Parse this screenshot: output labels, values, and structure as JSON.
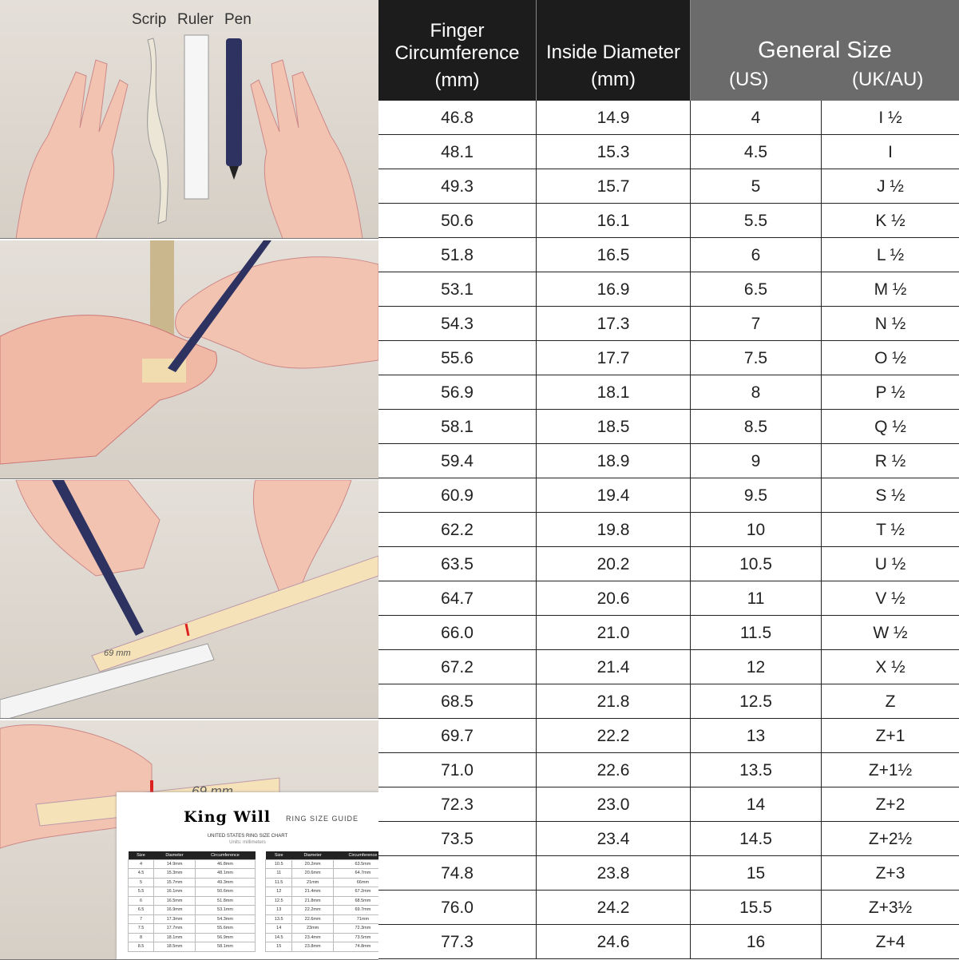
{
  "illustrations": {
    "tools": [
      "Scrip",
      "Ruler",
      "Pen"
    ],
    "pen_brand": "King Will",
    "strip_mark": "69 mm",
    "guide_card": {
      "brand": "King Will",
      "subtitle": "RING SIZE GUIDE",
      "chart_title": "UNITED STATES RING SIZE CHART",
      "units": "Units: millimeters",
      "columns": [
        "Size",
        "Diameter",
        "Circumference"
      ],
      "left_rows": [
        [
          "4",
          "14.9mm",
          "46.8mm"
        ],
        [
          "4.5",
          "15.3mm",
          "48.1mm"
        ],
        [
          "5",
          "15.7mm",
          "49.3mm"
        ],
        [
          "5.5",
          "16.1mm",
          "50.6mm"
        ],
        [
          "6",
          "16.5mm",
          "51.8mm"
        ],
        [
          "6.5",
          "16.9mm",
          "53.1mm"
        ],
        [
          "7",
          "17.3mm",
          "54.3mm"
        ],
        [
          "7.5",
          "17.7mm",
          "55.6mm"
        ],
        [
          "8",
          "18.1mm",
          "56.9mm"
        ],
        [
          "8.5",
          "18.5mm",
          "58.1mm"
        ]
      ],
      "right_rows": [
        [
          "10.5",
          "20.2mm",
          "63.5mm"
        ],
        [
          "11",
          "20.6mm",
          "64.7mm"
        ],
        [
          "11.5",
          "21mm",
          "66mm"
        ],
        [
          "12",
          "21.4mm",
          "67.2mm"
        ],
        [
          "12.5",
          "21.8mm",
          "68.5mm"
        ],
        [
          "13",
          "22.2mm",
          "69.7mm"
        ],
        [
          "13.5",
          "22.6mm",
          "71mm"
        ],
        [
          "14",
          "23mm",
          "72.3mm"
        ],
        [
          "14.5",
          "23.4mm",
          "73.5mm"
        ],
        [
          "15",
          "23.8mm",
          "74.8mm"
        ]
      ]
    }
  },
  "table": {
    "headers": {
      "circumference": [
        "Finger",
        "Circumference",
        "(mm)"
      ],
      "diameter": [
        "Inside Diameter",
        "(mm)"
      ],
      "general": "General Size",
      "us": "(US)",
      "ukau": "(UK/AU)"
    },
    "colors": {
      "header_dark": "#1c1c1c",
      "header_gray": "#6b6b6b"
    },
    "rows": [
      [
        "46.8",
        "14.9",
        "4",
        "I ½"
      ],
      [
        "48.1",
        "15.3",
        "4.5",
        "I"
      ],
      [
        "49.3",
        "15.7",
        "5",
        "J ½"
      ],
      [
        "50.6",
        "16.1",
        "5.5",
        "K ½"
      ],
      [
        "51.8",
        "16.5",
        "6",
        "L ½"
      ],
      [
        "53.1",
        "16.9",
        "6.5",
        "M ½"
      ],
      [
        "54.3",
        "17.3",
        "7",
        "N ½"
      ],
      [
        "55.6",
        "17.7",
        "7.5",
        "O ½"
      ],
      [
        "56.9",
        "18.1",
        "8",
        "P ½"
      ],
      [
        "58.1",
        "18.5",
        "8.5",
        "Q ½"
      ],
      [
        "59.4",
        "18.9",
        "9",
        "R ½"
      ],
      [
        "60.9",
        "19.4",
        "9.5",
        "S ½"
      ],
      [
        "62.2",
        "19.8",
        "10",
        "T ½"
      ],
      [
        "63.5",
        "20.2",
        "10.5",
        "U ½"
      ],
      [
        "64.7",
        "20.6",
        "11",
        "V ½"
      ],
      [
        "66.0",
        "21.0",
        "11.5",
        "W ½"
      ],
      [
        "67.2",
        "21.4",
        "12",
        "X ½"
      ],
      [
        "68.5",
        "21.8",
        "12.5",
        "Z"
      ],
      [
        "69.7",
        "22.2",
        "13",
        "Z+1"
      ],
      [
        "71.0",
        "22.6",
        "13.5",
        "Z+1½"
      ],
      [
        "72.3",
        "23.0",
        "14",
        "Z+2"
      ],
      [
        "73.5",
        "23.4",
        "14.5",
        "Z+2½"
      ],
      [
        "74.8",
        "23.8",
        "15",
        "Z+3"
      ],
      [
        "76.0",
        "24.2",
        "15.5",
        "Z+3½"
      ],
      [
        "77.3",
        "24.6",
        "16",
        "Z+4"
      ]
    ]
  }
}
